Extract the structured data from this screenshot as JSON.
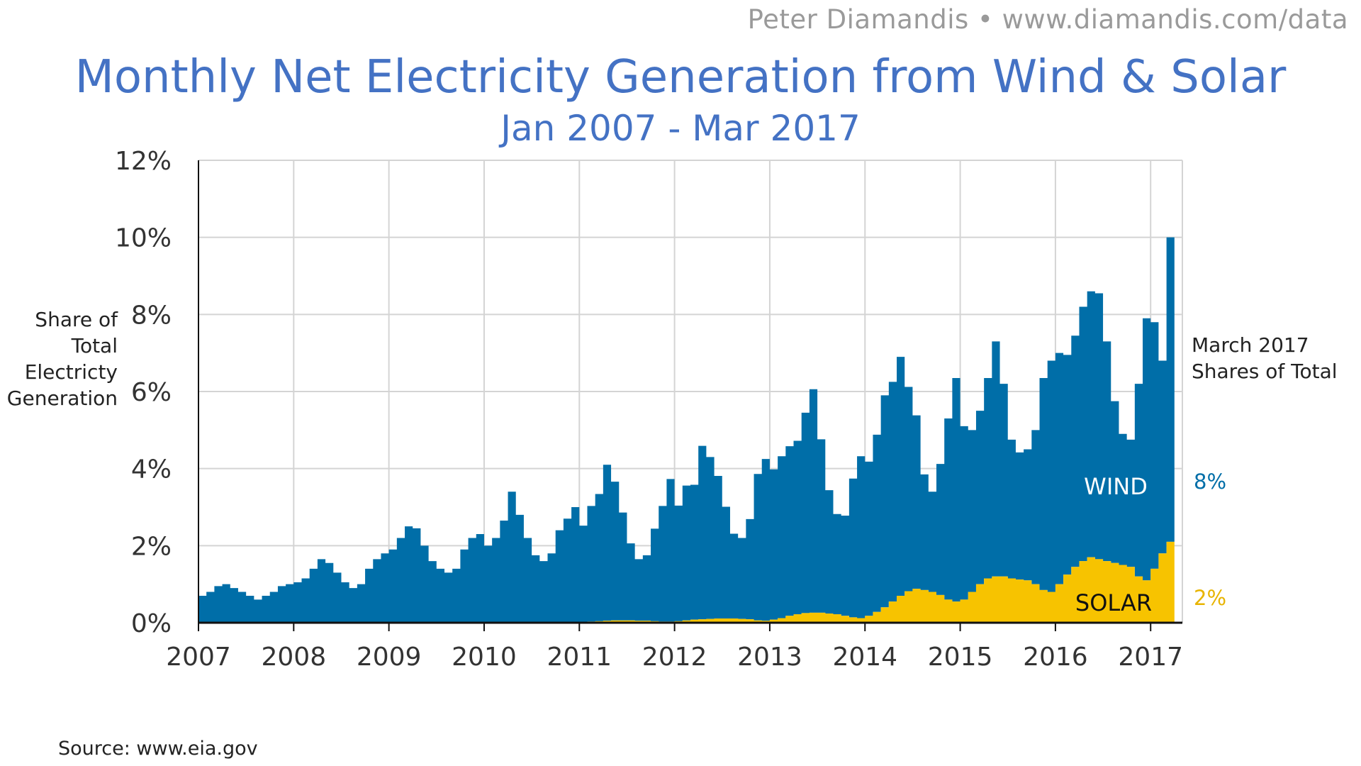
{
  "credit": "Peter Diamandis  •  www.diamandis.com/data",
  "title": "Monthly Net Electricity Generation from Wind & Solar",
  "subtitle": "Jan 2007 - Mar 2017",
  "ylabel_lines": [
    "Share of",
    "Total",
    "Electricty",
    "Generation"
  ],
  "side_note_lines": [
    "March 2017",
    "Shares of Total"
  ],
  "source": "Source: www.eia.gov",
  "colors": {
    "wind": "#006ea8",
    "solar": "#f7c300",
    "title": "#4472c4",
    "grid": "#d4d4d4"
  },
  "chart_data": {
    "type": "area",
    "stacked": true,
    "x_start": "2007-01",
    "x_end": "2017-03",
    "xticks": [
      "2007",
      "2008",
      "2009",
      "2010",
      "2011",
      "2012",
      "2013",
      "2014",
      "2015",
      "2016",
      "2017"
    ],
    "yticks": [
      "0%",
      "2%",
      "4%",
      "6%",
      "8%",
      "10%",
      "12%"
    ],
    "ylim": [
      0,
      12
    ],
    "grid": true,
    "series": [
      {
        "name": "SOLAR",
        "color": "#f7c300",
        "values": [
          0,
          0,
          0,
          0,
          0,
          0,
          0,
          0,
          0,
          0,
          0,
          0,
          0,
          0,
          0,
          0,
          0,
          0,
          0,
          0,
          0,
          0,
          0,
          0,
          0,
          0,
          0,
          0,
          0,
          0,
          0,
          0,
          0,
          0,
          0,
          0,
          0,
          0,
          0,
          0,
          0,
          0,
          0,
          0,
          0,
          0,
          0,
          0,
          0.02,
          0.03,
          0.04,
          0.05,
          0.06,
          0.06,
          0.06,
          0.05,
          0.05,
          0.04,
          0.03,
          0.03,
          0.04,
          0.06,
          0.08,
          0.09,
          0.1,
          0.11,
          0.11,
          0.11,
          0.1,
          0.09,
          0.06,
          0.05,
          0.08,
          0.12,
          0.18,
          0.22,
          0.25,
          0.26,
          0.26,
          0.24,
          0.22,
          0.18,
          0.14,
          0.12,
          0.18,
          0.28,
          0.4,
          0.55,
          0.7,
          0.82,
          0.88,
          0.85,
          0.8,
          0.72,
          0.6,
          0.55,
          0.6,
          0.8,
          1.0,
          1.15,
          1.2,
          1.2,
          1.15,
          1.12,
          1.1,
          1.0,
          0.85,
          0.8,
          1.0,
          1.25,
          1.45,
          1.6,
          1.7,
          1.65,
          1.6,
          1.55,
          1.5,
          1.45,
          1.2,
          1.1,
          1.4,
          1.8,
          2.1
        ]
      },
      {
        "name": "WIND",
        "color": "#006ea8",
        "values": [
          0.7,
          0.8,
          0.95,
          1.0,
          0.9,
          0.8,
          0.7,
          0.6,
          0.7,
          0.8,
          0.95,
          1.0,
          1.05,
          1.15,
          1.4,
          1.65,
          1.55,
          1.3,
          1.05,
          0.9,
          1.0,
          1.4,
          1.65,
          1.8,
          1.9,
          2.2,
          2.5,
          2.45,
          2.0,
          1.6,
          1.4,
          1.3,
          1.4,
          1.9,
          2.2,
          2.3,
          2.0,
          2.2,
          2.65,
          3.4,
          2.8,
          2.2,
          1.75,
          1.6,
          1.8,
          2.4,
          2.7,
          3.0,
          2.5,
          3.0,
          3.3,
          4.05,
          3.6,
          2.8,
          2.0,
          1.6,
          1.7,
          2.4,
          3.0,
          3.7,
          3.0,
          3.5,
          3.5,
          4.5,
          4.2,
          3.7,
          2.9,
          2.2,
          2.1,
          2.6,
          3.8,
          4.2,
          3.9,
          4.2,
          4.4,
          4.5,
          5.2,
          5.8,
          4.5,
          3.2,
          2.6,
          2.6,
          3.6,
          4.2,
          4.0,
          4.6,
          5.5,
          5.7,
          6.2,
          5.3,
          4.5,
          3.0,
          2.6,
          3.4,
          4.7,
          5.8,
          4.5,
          4.2,
          4.5,
          5.2,
          6.1,
          5.0,
          3.6,
          3.3,
          3.4,
          4.0,
          5.5,
          6.0,
          6.0,
          5.7,
          6.0,
          6.6,
          6.9,
          6.9,
          5.7,
          4.2,
          3.4,
          3.3,
          5.0,
          6.8,
          6.4,
          5.0,
          7.9
        ]
      }
    ],
    "annotations": [
      {
        "text": "WIND",
        "color": "#ffffff"
      },
      {
        "text": "SOLAR",
        "color": "#111111"
      },
      {
        "text": "8%",
        "color": "#006ea8"
      },
      {
        "text": "2%",
        "color": "#e8b400"
      }
    ]
  }
}
